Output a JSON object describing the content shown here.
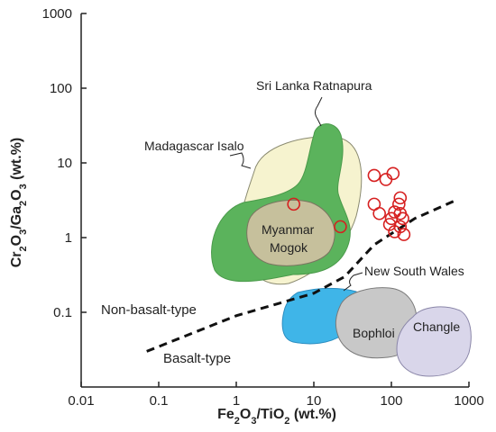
{
  "chart_data": {
    "type": "scatter",
    "xscale": "log",
    "yscale": "log",
    "xlim": [
      0.01,
      1000
    ],
    "ylim": [
      0.01,
      1000
    ],
    "x_ticks": [
      "0.01",
      "0.1",
      "1",
      "10",
      "100",
      "1000"
    ],
    "y_ticks": [
      "0.1",
      "1",
      "10",
      "100",
      "1000"
    ],
    "xlabel": {
      "pre": "Fe",
      "s1": "2",
      "mid": "O",
      "s2": "3",
      "mid2": "/TiO",
      "s3": "2",
      "post": " (wt.%)"
    },
    "ylabel": {
      "pre": "Cr",
      "s1": "2",
      "mid": "O",
      "s2": "3",
      "mid2": "/Ga",
      "s3": "2",
      "mid3": "O",
      "s4": "3",
      "post": " (wt.%)"
    },
    "regions": [
      {
        "name": "Madagascar Isalo",
        "color": "#f6f3cf"
      },
      {
        "name": "Sri Lanka Ratnapura",
        "color": "#5bb35c"
      },
      {
        "name": "Myanmar Mogok",
        "color": "#c6c09c"
      },
      {
        "name": "New South Wales",
        "color": "#3fb5e8"
      },
      {
        "name": "Bophloi",
        "color": "#c8c8c8"
      },
      {
        "name": "Changle",
        "color": "#d9d6ea"
      }
    ],
    "region_labels": {
      "madagascar": "Madagascar Isalo",
      "srilanka": "Sri Lanka Ratnapura",
      "myanmar1": "Myanmar",
      "myanmar2": "Mogok",
      "nsw": "New South Wales",
      "bophloi": "Bophloi",
      "changle": "Changle"
    },
    "boundary_labels": {
      "upper": "Non-basalt-type",
      "lower": "Basalt-type"
    },
    "boundary_line": [
      [
        0.07,
        0.03
      ],
      [
        1,
        0.09
      ],
      [
        10,
        0.18
      ],
      [
        25,
        0.3
      ],
      [
        60,
        0.8
      ],
      [
        200,
        1.8
      ],
      [
        650,
        3.1
      ]
    ],
    "points": [
      {
        "x": 5.5,
        "y": 2.8
      },
      {
        "x": 22,
        "y": 1.4
      },
      {
        "x": 60,
        "y": 6.8
      },
      {
        "x": 85,
        "y": 6.0
      },
      {
        "x": 105,
        "y": 7.2
      },
      {
        "x": 60,
        "y": 2.8
      },
      {
        "x": 70,
        "y": 2.1
      },
      {
        "x": 130,
        "y": 3.4
      },
      {
        "x": 125,
        "y": 2.8
      },
      {
        "x": 110,
        "y": 2.2
      },
      {
        "x": 130,
        "y": 2.1
      },
      {
        "x": 100,
        "y": 1.8
      },
      {
        "x": 140,
        "y": 1.8
      },
      {
        "x": 95,
        "y": 1.5
      },
      {
        "x": 130,
        "y": 1.4
      },
      {
        "x": 110,
        "y": 1.2
      },
      {
        "x": 145,
        "y": 1.1
      }
    ],
    "point_color": "#d62020",
    "grid": false
  }
}
